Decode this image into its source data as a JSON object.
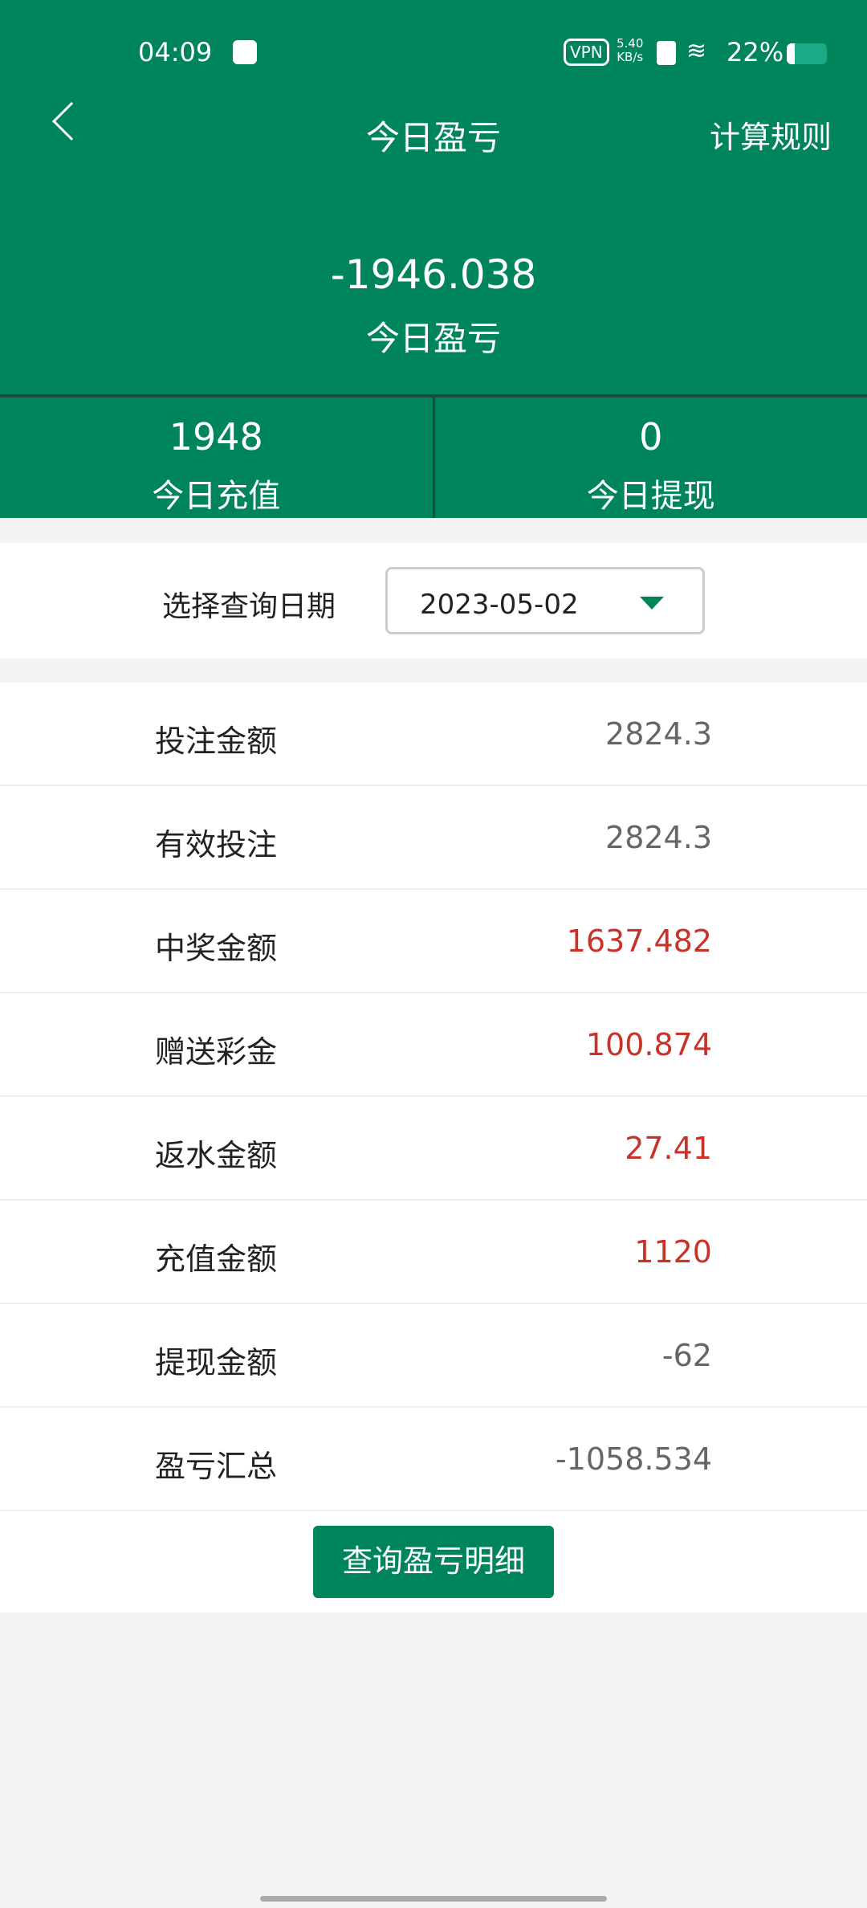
{
  "status_bar": {
    "time": "04:09",
    "vpn": "VPN",
    "speed_value": "5.40",
    "speed_unit": "KB/s",
    "battery": "22%",
    "battery_level": 0.22
  },
  "nav": {
    "title": "今日盈亏",
    "rules_label": "计算规则"
  },
  "summary": {
    "amount": "-1946.038",
    "label": "今日盈亏"
  },
  "stats": [
    {
      "value": "1948",
      "label": "今日充值"
    },
    {
      "value": "0",
      "label": "今日提现"
    }
  ],
  "date_filter": {
    "label": "选择查询日期",
    "value": "2023-05-02"
  },
  "rows": [
    {
      "label": "投注金额",
      "value": "2824.3",
      "color": "#666666"
    },
    {
      "label": "有效投注",
      "value": "2824.3",
      "color": "#666666"
    },
    {
      "label": "中奖金额",
      "value": "1637.482",
      "color": "#c83228"
    },
    {
      "label": "赠送彩金",
      "value": "100.874",
      "color": "#c83228"
    },
    {
      "label": "返水金额",
      "value": "27.41",
      "color": "#c83228"
    },
    {
      "label": "充值金额",
      "value": "1120",
      "color": "#c83228"
    },
    {
      "label": "提现金额",
      "value": "-62",
      "color": "#666666"
    },
    {
      "label": "盈亏汇总",
      "value": "-1058.534",
      "color": "#666666"
    }
  ],
  "button": {
    "label": "查询盈亏明细"
  },
  "colors": {
    "brand": "#00845c",
    "positive": "#c83228"
  }
}
